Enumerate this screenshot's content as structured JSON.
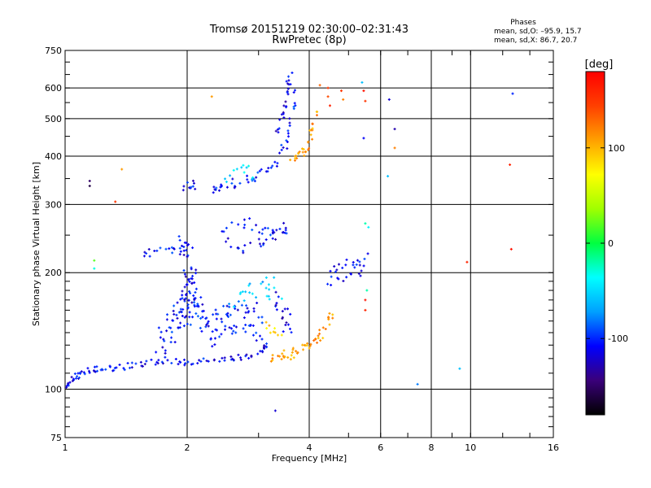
{
  "chart_data": {
    "type": "scatter",
    "title": "Tromsø 20151219 02:30:00–02:31:43",
    "subtitle": "RwPretec (8p)",
    "xlabel": "Frequency [MHz]",
    "ylabel": "Stationary phase Virtual Height [km]",
    "x_scale": "log",
    "y_scale": "log",
    "xlim": [
      1,
      16
    ],
    "ylim": [
      75,
      750
    ],
    "x_ticks": [
      1,
      2,
      4,
      6,
      8,
      10,
      16
    ],
    "y_ticks": [
      75,
      100,
      200,
      300,
      400,
      500,
      600,
      750
    ],
    "grid": true,
    "phases_info": {
      "title": "Phases",
      "line_o": "mean, sd,O: –95.9, 15.7",
      "line_x": "mean, sd,X:  86.7, 20.7"
    },
    "colorbar": {
      "label": "[deg]",
      "ticks": [
        100,
        0,
        -100
      ],
      "vmin": -180,
      "vmax": 180,
      "colors": [
        "#000000",
        "#3a007a",
        "#0000ff",
        "#00a0ff",
        "#00ffff",
        "#00ff40",
        "#a0ff00",
        "#ffff00",
        "#ffa000",
        "#ff4000",
        "#ff0000"
      ]
    },
    "traces": [
      {
        "name": "",
        "x": [
          1.0,
          1.03,
          1.06,
          1.1,
          1.15,
          1.22,
          1.3,
          1.4,
          1.52,
          1.65,
          1.8,
          1.95,
          2.1,
          2.3,
          2.5,
          2.7,
          2.9,
          3.1,
          3.2
        ],
        "y": [
          102,
          104,
          108,
          110,
          112,
          113,
          113,
          114,
          116,
          118,
          118,
          117,
          118,
          119,
          120,
          121,
          123,
          127,
          131
        ],
        "phase": -110,
        "jitter": 0.018,
        "density": 6
      },
      {
        "name": "",
        "x": [
          1.7,
          1.8,
          1.9,
          2.0,
          2.1,
          2.2,
          2.35,
          2.5,
          2.7,
          2.9,
          3.05
        ],
        "y": [
          125,
          140,
          155,
          175,
          160,
          148,
          140,
          150,
          160,
          150,
          145
        ],
        "phase": -105,
        "jitter": 0.09,
        "density": 14
      },
      {
        "name": "",
        "x": [
          1.95,
          2.0,
          2.02,
          2.05
        ],
        "y": [
          150,
          170,
          190,
          210
        ],
        "phase": -112,
        "jitter": 0.06,
        "density": 12
      },
      {
        "name": "",
        "x": [
          2.6,
          2.8,
          3.0,
          3.2,
          3.4
        ],
        "y": [
          170,
          175,
          180,
          185,
          178
        ],
        "phase": -60,
        "jitter": 0.07,
        "density": 6
      },
      {
        "name": "",
        "x": [
          3.2,
          3.4,
          3.6,
          3.8,
          4.0,
          4.2,
          4.4,
          4.6
        ],
        "y": [
          120,
          121,
          123,
          126,
          130,
          135,
          145,
          160
        ],
        "phase": 110,
        "jitter": 0.025,
        "density": 7
      },
      {
        "name": "",
        "x": [
          3.1,
          3.3,
          3.5
        ],
        "y": [
          150,
          140,
          130
        ],
        "phase": 90,
        "jitter": 0.04,
        "density": 5
      },
      {
        "name": "",
        "x": [
          3.3,
          3.4,
          3.5,
          3.6
        ],
        "y": [
          170,
          160,
          150,
          140
        ],
        "phase": -115,
        "jitter": 0.05,
        "density": 6
      },
      {
        "name": "",
        "x": [
          4.5,
          4.7,
          4.9,
          5.1,
          5.3,
          5.5
        ],
        "y": [
          190,
          205,
          200,
          210,
          205,
          215
        ],
        "phase": -110,
        "jitter": 0.05,
        "density": 6
      },
      {
        "name": "",
        "x": [
          1.55,
          1.65,
          1.8,
          1.92,
          2.0
        ],
        "y": [
          225,
          225,
          230,
          230,
          235
        ],
        "phase": -105,
        "jitter": 0.03,
        "density": 5
      },
      {
        "name": "",
        "x": [
          1.9,
          1.98,
          2.05
        ],
        "y": [
          240,
          230,
          220
        ],
        "phase": -110,
        "jitter": 0.04,
        "density": 6
      },
      {
        "name": "",
        "x": [
          2.5,
          2.7,
          2.9,
          3.1,
          3.3,
          3.5
        ],
        "y": [
          240,
          230,
          235,
          240,
          250,
          255
        ],
        "phase": -110,
        "jitter": 0.03,
        "density": 5
      },
      {
        "name": "",
        "x": [
          2.4,
          2.6,
          2.8,
          3.0,
          3.2,
          3.4,
          3.6
        ],
        "y": [
          260,
          265,
          270,
          262,
          255,
          260,
          262
        ],
        "phase": -105,
        "jitter": 0.03,
        "density": 4
      },
      {
        "name": "",
        "x": [
          2.3,
          2.4,
          2.6,
          2.8,
          3.0,
          3.2,
          3.4,
          3.55,
          3.65,
          3.7
        ],
        "y": [
          330,
          335,
          340,
          345,
          355,
          370,
          400,
          450,
          520,
          600
        ],
        "phase": -105,
        "jitter": 0.025,
        "density": 6
      },
      {
        "name": "",
        "x": [
          2.4,
          2.6,
          2.8,
          3.0
        ],
        "y": [
          345,
          360,
          370,
          350
        ],
        "phase": -50,
        "jitter": 0.03,
        "density": 4
      },
      {
        "name": "",
        "x": [
          3.3,
          3.4,
          3.5,
          3.55,
          3.6
        ],
        "y": [
          450,
          500,
          550,
          600,
          640
        ],
        "phase": -115,
        "jitter": 0.03,
        "density": 6
      },
      {
        "name": "",
        "x": [
          3.6,
          3.75,
          3.9,
          4.0,
          4.1,
          4.15
        ],
        "y": [
          395,
          400,
          410,
          430,
          480,
          530
        ],
        "phase": 110,
        "jitter": 0.022,
        "density": 6
      },
      {
        "name": "",
        "x": [
          1.95,
          2.05,
          2.1
        ],
        "y": [
          330,
          340,
          335
        ],
        "phase": -110,
        "jitter": 0.02,
        "density": 5
      }
    ],
    "points": [
      {
        "x": 1.15,
        "y": 345,
        "phase": -150
      },
      {
        "x": 1.15,
        "y": 335,
        "phase": -160
      },
      {
        "x": 1.33,
        "y": 305,
        "phase": 150
      },
      {
        "x": 1.38,
        "y": 370,
        "phase": 110
      },
      {
        "x": 1.18,
        "y": 215,
        "phase": 20
      },
      {
        "x": 1.18,
        "y": 205,
        "phase": -30
      },
      {
        "x": 2.3,
        "y": 570,
        "phase": 110
      },
      {
        "x": 4.25,
        "y": 610,
        "phase": 130
      },
      {
        "x": 4.45,
        "y": 600,
        "phase": 150
      },
      {
        "x": 4.45,
        "y": 570,
        "phase": 140
      },
      {
        "x": 4.5,
        "y": 540,
        "phase": 160
      },
      {
        "x": 4.8,
        "y": 590,
        "phase": 150
      },
      {
        "x": 4.85,
        "y": 560,
        "phase": 120
      },
      {
        "x": 5.4,
        "y": 620,
        "phase": -60
      },
      {
        "x": 5.45,
        "y": 590,
        "phase": 170
      },
      {
        "x": 5.5,
        "y": 555,
        "phase": 150
      },
      {
        "x": 6.3,
        "y": 560,
        "phase": -120
      },
      {
        "x": 6.5,
        "y": 470,
        "phase": -130
      },
      {
        "x": 6.5,
        "y": 420,
        "phase": 120
      },
      {
        "x": 5.45,
        "y": 445,
        "phase": -110
      },
      {
        "x": 6.25,
        "y": 355,
        "phase": -60
      },
      {
        "x": 5.5,
        "y": 268,
        "phase": -20
      },
      {
        "x": 5.6,
        "y": 262,
        "phase": -40
      },
      {
        "x": 9.8,
        "y": 213,
        "phase": 160
      },
      {
        "x": 12.6,
        "y": 230,
        "phase": 170
      },
      {
        "x": 12.5,
        "y": 380,
        "phase": 160
      },
      {
        "x": 12.7,
        "y": 580,
        "phase": -100
      },
      {
        "x": 9.4,
        "y": 113,
        "phase": -60
      },
      {
        "x": 7.4,
        "y": 103,
        "phase": -80
      },
      {
        "x": 5.5,
        "y": 170,
        "phase": 170
      },
      {
        "x": 5.5,
        "y": 160,
        "phase": 160
      },
      {
        "x": 5.55,
        "y": 180,
        "phase": -20
      },
      {
        "x": 3.3,
        "y": 88,
        "phase": -120
      }
    ]
  }
}
